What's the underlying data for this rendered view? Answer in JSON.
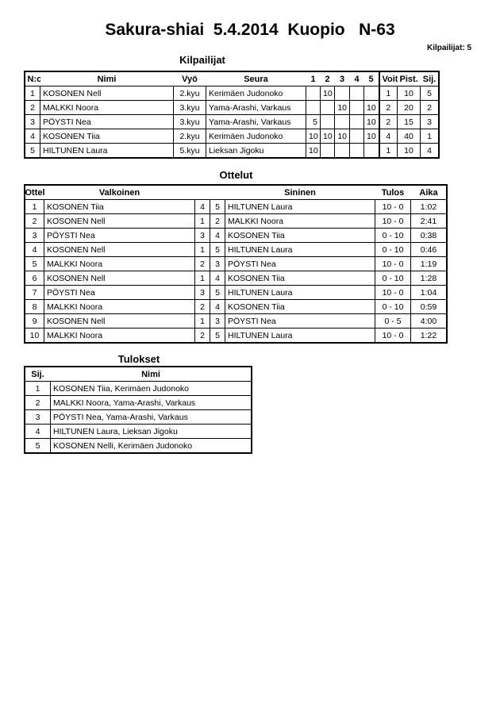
{
  "title": "Sakura-shiai  5.4.2014  Kuopio   N-63",
  "competitor_count": "Kilpailijat: 5",
  "competitors": {
    "heading": "Kilpailijat",
    "headers": [
      "N:o",
      "Nimi",
      "Vyö",
      "Seura",
      "1",
      "2",
      "3",
      "4",
      "5",
      "Voit.",
      "Pist.",
      "Sij."
    ],
    "rows": [
      [
        "1",
        "KOSONEN Nell",
        "2.kyu",
        "Kerimäen Judonoko",
        "",
        "10",
        "",
        "",
        "",
        "1",
        "10",
        "5"
      ],
      [
        "2",
        "MALKKI Noora",
        "3.kyu",
        "Yama-Arashi, Varkaus",
        "",
        "",
        "10",
        "",
        "10",
        "2",
        "20",
        "2"
      ],
      [
        "3",
        "PÖYSTI Nea",
        "3.kyu",
        "Yama-Arashi, Varkaus",
        "5",
        "",
        "",
        "",
        "10",
        "2",
        "15",
        "3"
      ],
      [
        "4",
        "KOSONEN Tiia",
        "2.kyu",
        "Kerimäen Judonoko",
        "10",
        "10",
        "10",
        "",
        "10",
        "4",
        "40",
        "1"
      ],
      [
        "5",
        "HILTUNEN Laura",
        "5.kyu",
        "Lieksan Jigoku",
        "10",
        "",
        "",
        "",
        "",
        "1",
        "10",
        "4"
      ]
    ]
  },
  "matches": {
    "heading": "Ottelut",
    "headers": [
      "Ottelu",
      "Valkoinen",
      "",
      "",
      "Sininen",
      "Tulos",
      "Aika"
    ],
    "rows": [
      [
        "1",
        "KOSONEN Tiia",
        "4",
        "5",
        "HILTUNEN Laura",
        "10 - 0",
        "1:02"
      ],
      [
        "2",
        "KOSONEN Nell",
        "1",
        "2",
        "MALKKI Noora",
        "10 - 0",
        "2:41"
      ],
      [
        "3",
        "PÖYSTI Nea",
        "3",
        "4",
        "KOSONEN Tiia",
        "0 - 10",
        "0:38"
      ],
      [
        "4",
        "KOSONEN Nell",
        "1",
        "5",
        "HILTUNEN Laura",
        "0 - 10",
        "0:46"
      ],
      [
        "5",
        "MALKKI Noora",
        "2",
        "3",
        "PÖYSTI Nea",
        "10 - 0",
        "1:19"
      ],
      [
        "6",
        "KOSONEN Nell",
        "1",
        "4",
        "KOSONEN Tiia",
        "0 - 10",
        "1:28"
      ],
      [
        "7",
        "PÖYSTI Nea",
        "3",
        "5",
        "HILTUNEN Laura",
        "10 - 0",
        "1:04"
      ],
      [
        "8",
        "MALKKI Noora",
        "2",
        "4",
        "KOSONEN Tiia",
        "0 - 10",
        "0:59"
      ],
      [
        "9",
        "KOSONEN Nell",
        "1",
        "3",
        "PÖYSTI Nea",
        "0 - 5",
        "4:00"
      ],
      [
        "10",
        "MALKKI Noora",
        "2",
        "5",
        "HILTUNEN Laura",
        "10 - 0",
        "1:22"
      ]
    ]
  },
  "results": {
    "heading": "Tulokset",
    "headers": [
      "Sij.",
      "Nimi"
    ],
    "rows": [
      [
        "1",
        "KOSONEN Tiia, Kerimäen Judonoko"
      ],
      [
        "2",
        "MALKKI Noora, Yama-Arashi, Varkaus"
      ],
      [
        "3",
        "PÖYSTI Nea, Yama-Arashi, Varkaus"
      ],
      [
        "4",
        "HILTUNEN Laura, Lieksan Jigoku"
      ],
      [
        "5",
        "KOSONEN Nelli, Kerimäen Judonoko"
      ]
    ]
  }
}
